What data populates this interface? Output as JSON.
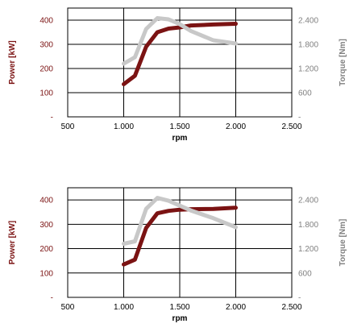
{
  "colors": {
    "power": "#7b1313",
    "torque": "#c8c8c8",
    "grid": "#000000",
    "power_label": "#7b1313",
    "torque_label": "#808080"
  },
  "chart_data": [
    {
      "type": "line",
      "xlabel": "rpm",
      "ylabel_left": "Power [kW]",
      "ylabel_right": "Torque [Nm]",
      "xlim": [
        500,
        2500
      ],
      "ylim_left": [
        0,
        450
      ],
      "ylim_right": [
        0,
        2700
      ],
      "x_ticks": [
        "500",
        "1.000",
        "1.500",
        "2.000",
        "2.500"
      ],
      "x_tick_values": [
        500,
        1000,
        1500,
        2000,
        2500
      ],
      "y_left_ticks": [
        "-",
        "100",
        "200",
        "300",
        "400"
      ],
      "y_left_tick_values": [
        0,
        100,
        200,
        300,
        400
      ],
      "y_right_ticks": [
        "-",
        "600",
        "1.200",
        "1.800",
        "2.400"
      ],
      "y_right_tick_values": [
        0,
        600,
        1200,
        1800,
        2400
      ],
      "grid": true,
      "series": [
        {
          "axis": "left",
          "color_key": "power",
          "x": [
            1000,
            1100,
            1200,
            1300,
            1400,
            1500,
            1600,
            1800,
            2000
          ],
          "values": [
            135,
            170,
            290,
            350,
            365,
            370,
            378,
            382,
            385
          ]
        },
        {
          "axis": "right",
          "color_key": "torque",
          "x": [
            1000,
            1100,
            1200,
            1300,
            1400,
            1500,
            1600,
            1800,
            2000
          ],
          "values": [
            1320,
            1480,
            2180,
            2450,
            2420,
            2300,
            2130,
            1900,
            1820
          ]
        }
      ]
    },
    {
      "type": "line",
      "xlabel": "rpm",
      "ylabel_left": "Power [kW]",
      "ylabel_right": "Torque [Nm]",
      "xlim": [
        500,
        2500
      ],
      "ylim_left": [
        0,
        450
      ],
      "ylim_right": [
        0,
        2700
      ],
      "x_ticks": [
        "500",
        "1.000",
        "1.500",
        "2.000",
        "2.500"
      ],
      "x_tick_values": [
        500,
        1000,
        1500,
        2000,
        2500
      ],
      "y_left_ticks": [
        "-",
        "100",
        "200",
        "300",
        "400"
      ],
      "y_left_tick_values": [
        0,
        100,
        200,
        300,
        400
      ],
      "y_right_ticks": [
        "-",
        "600",
        "1.200",
        "1.800",
        "2.400"
      ],
      "y_right_tick_values": [
        0,
        600,
        1200,
        1800,
        2400
      ],
      "grid": true,
      "series": [
        {
          "axis": "left",
          "color_key": "power",
          "x": [
            1000,
            1100,
            1200,
            1300,
            1400,
            1500,
            1600,
            1800,
            2000
          ],
          "values": [
            135,
            155,
            285,
            345,
            355,
            360,
            362,
            363,
            368
          ]
        },
        {
          "axis": "right",
          "color_key": "torque",
          "x": [
            1000,
            1100,
            1200,
            1300,
            1400,
            1500,
            1600,
            1800,
            2000
          ],
          "values": [
            1320,
            1380,
            2180,
            2450,
            2380,
            2260,
            2140,
            1950,
            1730
          ]
        }
      ]
    }
  ]
}
